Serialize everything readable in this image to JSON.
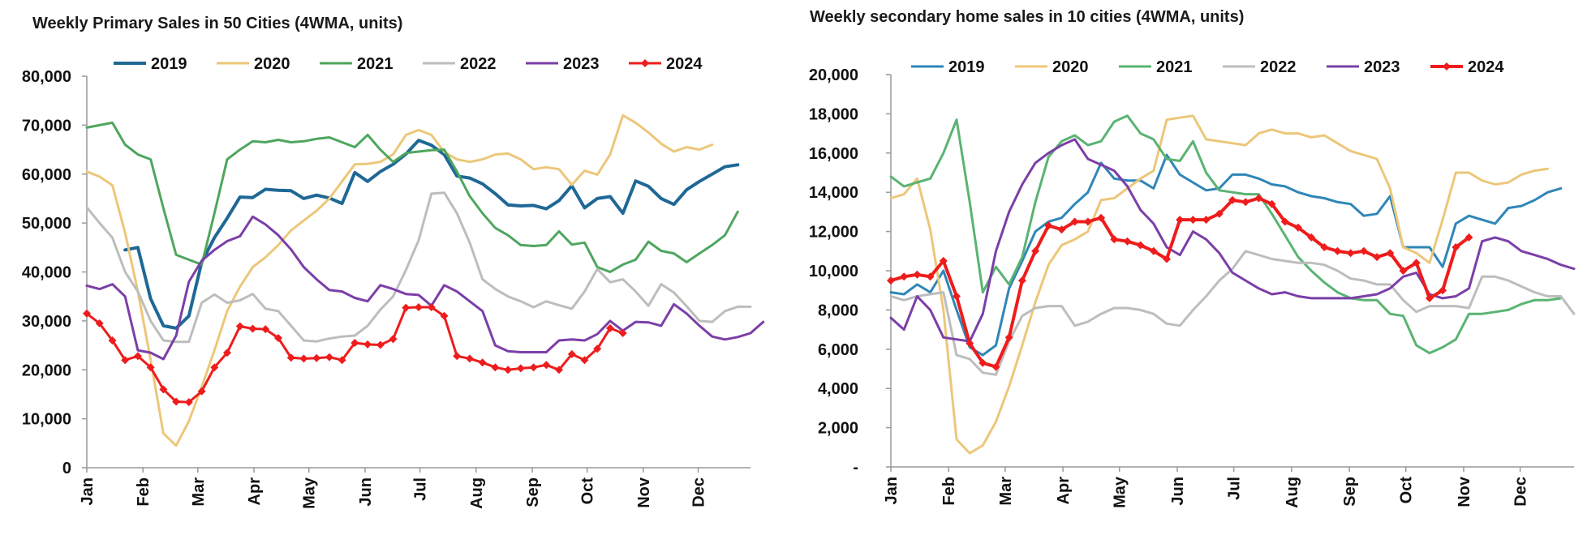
{
  "chart_data": [
    {
      "type": "line",
      "title": "Weekly Primary Sales in 50 Cities (4WMA, units)",
      "xlabel": "",
      "ylabel": "",
      "ylim": [
        0,
        80000
      ],
      "yticks": [
        0,
        10000,
        20000,
        30000,
        40000,
        50000,
        60000,
        70000,
        80000
      ],
      "ytick_labels": [
        "0",
        "10,000",
        "20,000",
        "30,000",
        "40,000",
        "50,000",
        "60,000",
        "70,000",
        "80,000"
      ],
      "xlim": [
        1,
        53
      ],
      "month_labels": [
        "Jan",
        "Feb",
        "Mar",
        "Apr",
        "May",
        "Jun",
        "Jul",
        "Aug",
        "Sep",
        "Oct",
        "Nov",
        "Dec"
      ],
      "month_weeks": [
        1,
        5.4,
        9.7,
        14.1,
        18.4,
        22.8,
        27.1,
        31.5,
        35.9,
        40.2,
        44.6,
        48.9
      ],
      "legend_position": "top",
      "grid": false,
      "series": [
        {
          "name": "2019",
          "color": "#1f6896",
          "width": 4,
          "start": 4,
          "values": [
            44500,
            45000,
            34500,
            29000,
            28500,
            31000,
            42000,
            47000,
            51000,
            55300,
            55200,
            56900,
            56700,
            56600,
            55000,
            55700,
            55100,
            54000,
            60300,
            58500,
            60500,
            62000,
            64100,
            66900,
            65900,
            64000,
            59600,
            59200,
            58000,
            56000,
            53700,
            53500,
            53600,
            52900,
            54600,
            57600,
            53100,
            55000,
            55400,
            52000,
            58600,
            57500,
            55000,
            53800,
            56800,
            58500,
            60000,
            61500,
            61900
          ]
        },
        {
          "name": "2020",
          "color": "#ecc77a",
          "width": 3,
          "start": 1,
          "values": [
            60500,
            59500,
            57700,
            48000,
            36000,
            22000,
            7000,
            4500,
            9500,
            16500,
            24000,
            32000,
            37000,
            41000,
            43000,
            45500,
            48500,
            50500,
            52500,
            55000,
            58500,
            62000,
            62100,
            62500,
            64000,
            68000,
            69000,
            68000,
            64500,
            63000,
            62500,
            63000,
            64000,
            64200,
            63000,
            61000,
            61400,
            61000,
            57800,
            60700,
            59900,
            64000,
            72000,
            70500,
            68500,
            66200,
            64600,
            65500,
            65000,
            66000
          ]
        },
        {
          "name": "2021",
          "color": "#4ea65e",
          "width": 3,
          "start": 1,
          "values": [
            69500,
            70000,
            70500,
            66000,
            64000,
            63000,
            53000,
            43500,
            42500,
            41500,
            52000,
            63000,
            65000,
            66700,
            66500,
            67000,
            66500,
            66700,
            67200,
            67500,
            66500,
            65500,
            68000,
            65000,
            62500,
            64300,
            64600,
            64900,
            65000,
            60500,
            55500,
            52000,
            49000,
            47500,
            45500,
            45300,
            45500,
            48300,
            45600,
            46000,
            41000,
            40000,
            41500,
            42500,
            46200,
            44300,
            43800,
            42000,
            43800,
            45500,
            47500,
            52300
          ]
        },
        {
          "name": "2022",
          "color": "#bdbdbd",
          "width": 3,
          "start": 1,
          "values": [
            53200,
            50000,
            47000,
            40000,
            36000,
            30000,
            26000,
            25700,
            25700,
            33700,
            35400,
            33700,
            34200,
            35500,
            32500,
            32000,
            29000,
            26000,
            25800,
            26400,
            26800,
            27000,
            29000,
            32300,
            35000,
            40400,
            46500,
            56000,
            56200,
            52000,
            46000,
            38500,
            36500,
            35000,
            34000,
            32800,
            34000,
            33200,
            32500,
            36000,
            40600,
            37900,
            38500,
            36000,
            33100,
            37500,
            35800,
            33000,
            30000,
            29800,
            32000,
            32900,
            32900
          ]
        },
        {
          "name": "2023",
          "color": "#7b3fa8",
          "width": 3,
          "start": 1,
          "values": [
            37200,
            36500,
            37500,
            35000,
            24000,
            23500,
            22200,
            27000,
            38000,
            42300,
            44500,
            46300,
            47300,
            51300,
            49700,
            47500,
            44600,
            41000,
            38500,
            36300,
            36000,
            34700,
            34000,
            37300,
            36500,
            35500,
            35300,
            33100,
            37300,
            36000,
            34000,
            32000,
            25000,
            23800,
            23600,
            23600,
            23600,
            26000,
            26200,
            26000,
            27300,
            30000,
            28000,
            29800,
            29700,
            29000,
            33400,
            31500,
            29000,
            26800,
            26200,
            26700,
            27500,
            29800
          ]
        },
        {
          "name": "2024",
          "color": "#ee1c1c",
          "width": 3,
          "start": 1,
          "markers": true,
          "values": [
            31500,
            29500,
            26000,
            22000,
            22800,
            20500,
            16000,
            13500,
            13400,
            15600,
            20500,
            23500,
            28900,
            28400,
            28300,
            26500,
            22500,
            22300,
            22400,
            22600,
            22000,
            25500,
            25200,
            25100,
            26300,
            32700,
            32800,
            32800,
            31000,
            22800,
            22300,
            21500,
            20500,
            20000,
            20300,
            20500,
            21000,
            20000,
            23200,
            22000,
            24300,
            28500,
            27500
          ]
        }
      ]
    },
    {
      "type": "line",
      "title": "Weekly secondary home sales in 10 cities (4WMA, units)",
      "xlabel": "",
      "ylabel": "",
      "ylim": [
        0,
        20000
      ],
      "yticks": [
        0,
        2000,
        4000,
        6000,
        8000,
        10000,
        12000,
        14000,
        16000,
        18000,
        20000
      ],
      "ytick_labels": [
        "-",
        "2,000",
        "4,000",
        "6,000",
        "8,000",
        "10,000",
        "12,000",
        "14,000",
        "16,000",
        "18,000",
        "20,000"
      ],
      "xlim": [
        1,
        53
      ],
      "month_labels": [
        "Jan",
        "Feb",
        "Mar",
        "Apr",
        "May",
        "Jun",
        "Jul",
        "Aug",
        "Sep",
        "Oct",
        "Nov",
        "Dec"
      ],
      "month_weeks": [
        1,
        5.4,
        9.7,
        14.1,
        18.4,
        22.8,
        27.1,
        31.5,
        35.9,
        40.2,
        44.6,
        48.9
      ],
      "legend_position": "top",
      "grid": false,
      "series": [
        {
          "name": "2019",
          "color": "#2f86b8",
          "width": 3,
          "start": 1,
          "values": [
            8900,
            8800,
            9300,
            8900,
            10000,
            8000,
            6100,
            5700,
            6200,
            9100,
            10500,
            12000,
            12500,
            12700,
            13400,
            14000,
            15500,
            14700,
            14600,
            14600,
            14200,
            15900,
            14900,
            14500,
            14100,
            14200,
            14900,
            14900,
            14700,
            14400,
            14300,
            14000,
            13800,
            13700,
            13500,
            13400,
            12800,
            12900,
            13800,
            11200,
            11200,
            11200,
            10200,
            12400,
            12800,
            12600,
            12400,
            13200,
            13300,
            13600,
            14000,
            14200
          ]
        },
        {
          "name": "2020",
          "color": "#ecc77a",
          "width": 3,
          "start": 1,
          "values": [
            13700,
            13900,
            14700,
            12100,
            8000,
            1400,
            700,
            1100,
            2300,
            4100,
            6200,
            8400,
            10300,
            11300,
            11600,
            12000,
            13600,
            13700,
            14200,
            14700,
            15100,
            17700,
            17800,
            17900,
            16700,
            16600,
            16500,
            16400,
            17000,
            17200,
            17000,
            17000,
            16800,
            16900,
            16500,
            16100,
            15900,
            15700,
            14200,
            11200,
            10900,
            10400,
            12600,
            15000,
            15000,
            14600,
            14400,
            14500,
            14900,
            15100,
            15200
          ]
        },
        {
          "name": "2021",
          "color": "#5ab372",
          "width": 3,
          "start": 1,
          "values": [
            14800,
            14300,
            14500,
            14700,
            16000,
            17700,
            13500,
            8900,
            10200,
            9300,
            10700,
            13500,
            15800,
            16600,
            16900,
            16400,
            16600,
            17600,
            17900,
            17000,
            16700,
            15700,
            15600,
            16600,
            15000,
            14100,
            14000,
            13900,
            13900,
            12900,
            11800,
            10700,
            10000,
            9400,
            8900,
            8600,
            8500,
            8500,
            7800,
            7700,
            6200,
            5800,
            6100,
            6500,
            7800,
            7800,
            7900,
            8000,
            8300,
            8500,
            8500,
            8600
          ]
        },
        {
          "name": "2022",
          "color": "#bdbdbd",
          "width": 3,
          "start": 1,
          "values": [
            8700,
            8500,
            8700,
            8800,
            8900,
            5700,
            5500,
            4800,
            4700,
            6400,
            7700,
            8100,
            8200,
            8200,
            7200,
            7400,
            7800,
            8100,
            8100,
            8000,
            7800,
            7300,
            7200,
            8000,
            8700,
            9500,
            10100,
            11000,
            10800,
            10600,
            10500,
            10400,
            10400,
            10300,
            10000,
            9600,
            9500,
            9300,
            9300,
            8500,
            7900,
            8200,
            8200,
            8200,
            8100,
            9700,
            9700,
            9500,
            9200,
            8900,
            8700,
            8700,
            7800
          ]
        },
        {
          "name": "2023",
          "color": "#7b3fa8",
          "width": 3,
          "start": 1,
          "values": [
            7600,
            7000,
            8700,
            8000,
            6600,
            6500,
            6400,
            7800,
            11000,
            13000,
            14400,
            15500,
            16000,
            16400,
            16700,
            15700,
            15400,
            15100,
            14300,
            13100,
            12400,
            11200,
            10800,
            12000,
            11600,
            10900,
            9900,
            9500,
            9100,
            8800,
            8900,
            8700,
            8600,
            8600,
            8600,
            8600,
            8700,
            8800,
            9100,
            9700,
            9900,
            8800,
            8600,
            8700,
            9100,
            11500,
            11700,
            11500,
            11000,
            10800,
            10600,
            10300,
            10100
          ]
        },
        {
          "name": "2024",
          "color": "#ee1c1c",
          "width": 4,
          "start": 1,
          "markers": true,
          "values": [
            9500,
            9700,
            9800,
            9700,
            10500,
            8700,
            6300,
            5300,
            5100,
            6600,
            9500,
            11000,
            12300,
            12100,
            12500,
            12500,
            12700,
            11600,
            11500,
            11300,
            11000,
            10600,
            12600,
            12600,
            12600,
            12900,
            13600,
            13500,
            13700,
            13400,
            12500,
            12200,
            11700,
            11200,
            11000,
            10900,
            11000,
            10700,
            10900,
            10000,
            10400,
            8600,
            9000,
            11200,
            11700
          ]
        }
      ]
    }
  ]
}
